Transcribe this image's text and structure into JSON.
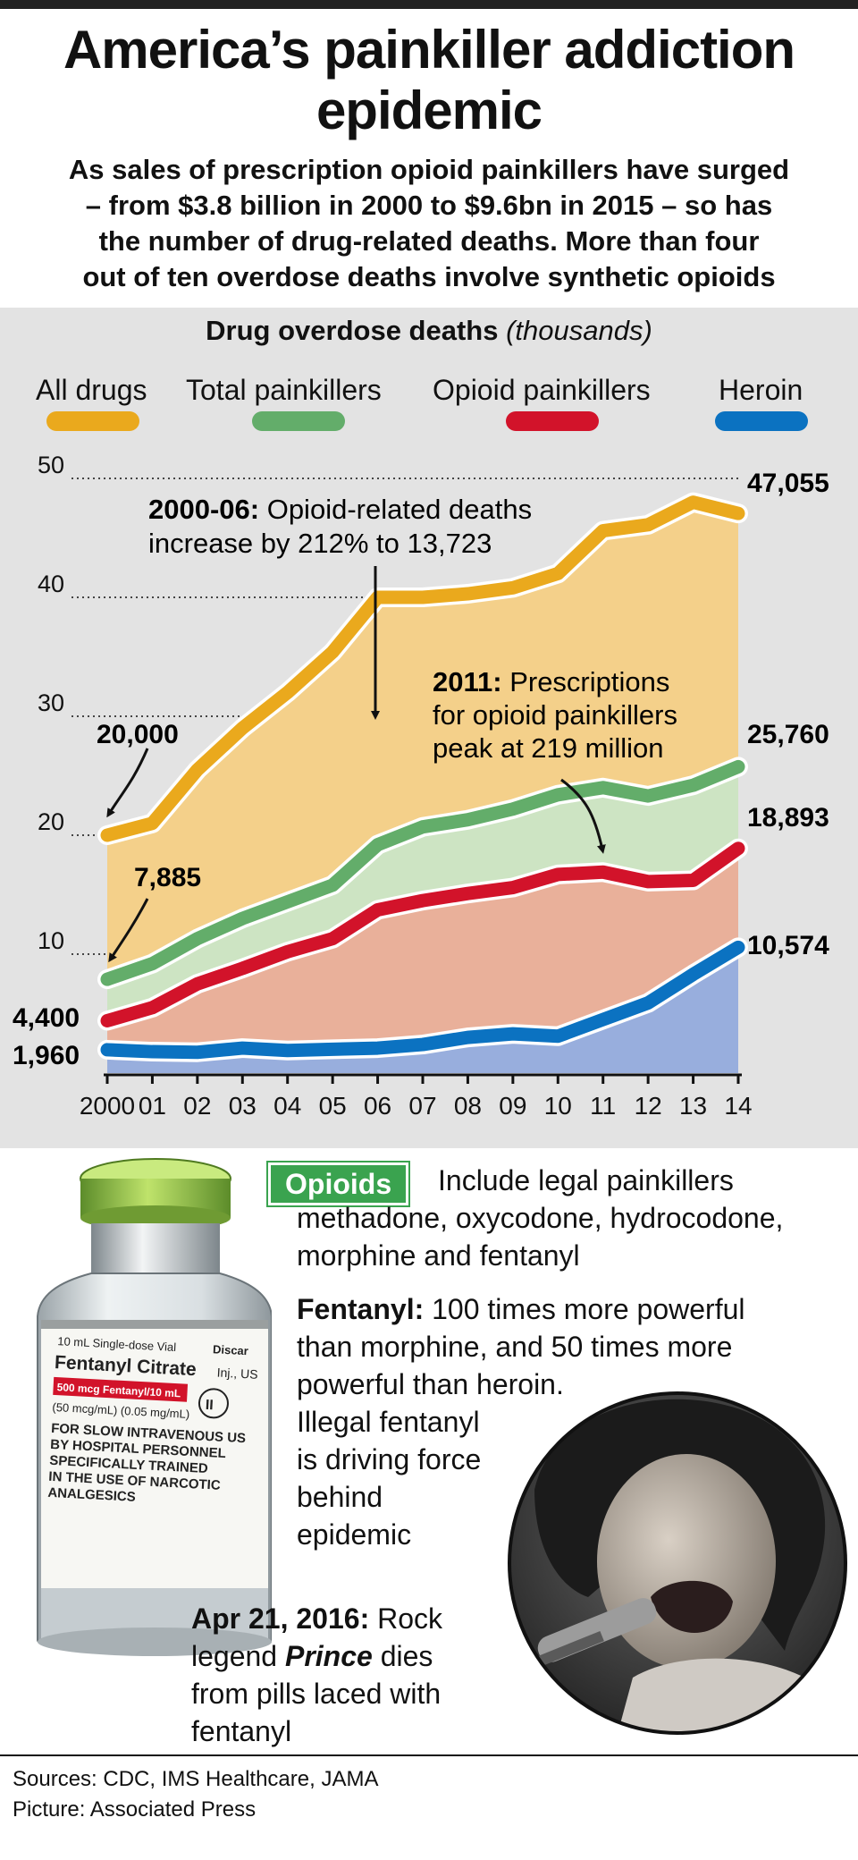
{
  "header": {
    "title_line1": "America’s painkiller addiction",
    "title_line2": "epidemic",
    "intro_lines": [
      "As sales of prescription opioid painkillers have surged",
      "– from $3.8 billion in 2000 to $9.6bn in 2015 – so has",
      "the number of drug-related deaths. More than four",
      "out of ten overdose deaths involve synthetic opioids"
    ]
  },
  "chart_data": {
    "type": "area",
    "title": "Drug overdose deaths",
    "title_unit": "(thousands)",
    "x_tick_labels": [
      "2000",
      "01",
      "02",
      "03",
      "04",
      "05",
      "06",
      "07",
      "08",
      "09",
      "10",
      "11",
      "12",
      "13",
      "14"
    ],
    "x": [
      2000,
      2001,
      2002,
      2003,
      2004,
      2005,
      2006,
      2007,
      2008,
      2009,
      2010,
      2011,
      2012,
      2013,
      2014
    ],
    "y_ticks": [
      10,
      20,
      30,
      40,
      50
    ],
    "ylim": [
      0,
      50
    ],
    "grid": "dotted horizontal",
    "legend_position": "top",
    "series": [
      {
        "name": "All drugs",
        "color": "#eaa91d",
        "fill": "#f4d08a",
        "values": [
          20.0,
          21.0,
          25.5,
          29.0,
          32.0,
          35.4,
          40.0,
          40.0,
          40.3,
          40.8,
          42.0,
          45.6,
          46.1,
          48.0,
          47.055
        ]
      },
      {
        "name": "Total painkillers",
        "color": "#63ad6a",
        "fill": "#cde4c3",
        "values": [
          7.885,
          9.2,
          11.3,
          13.0,
          14.4,
          15.8,
          19.2,
          20.7,
          21.3,
          22.2,
          23.4,
          24.0,
          23.3,
          24.2,
          25.76
        ]
      },
      {
        "name": "Opioid painkillers",
        "color": "#d2132a",
        "fill": "#e9b09a",
        "values": [
          4.4,
          5.5,
          7.5,
          8.8,
          10.2,
          11.3,
          13.723,
          14.5,
          15.1,
          15.6,
          16.7,
          16.9,
          16.1,
          16.2,
          18.893
        ]
      },
      {
        "name": "Heroin",
        "color": "#0b72c1",
        "fill": "#98aedd",
        "values": [
          1.96,
          1.8,
          1.75,
          2.1,
          1.9,
          2.0,
          2.1,
          2.4,
          3.0,
          3.3,
          3.1,
          4.5,
          5.9,
          8.3,
          10.574
        ]
      }
    ],
    "value_labels": {
      "all_start": "20,000",
      "all_end": "47,055",
      "total_start": "7,885",
      "total_end": "25,760",
      "opioid_start": "4,400",
      "opioid_end": "18,893",
      "heroin_start": "1,960",
      "heroin_end": "10,574"
    },
    "annotations": [
      {
        "bold": "2000-06:",
        "line1": " Opioid-related deaths",
        "line2": "increase by 212% to 13,723"
      },
      {
        "bold": "2011:",
        "line1": " Prescriptions",
        "line2": "for opioid painkillers",
        "line3": "peak at 219 million"
      }
    ]
  },
  "opioids": {
    "badge": "Opioids",
    "line1": "Include legal painkillers",
    "line2": "methadone, oxycodone, hydrocodone,",
    "line3": "morphine and fentanyl"
  },
  "fentanyl": {
    "bold": "Fentanyl:",
    "line1": " 100 times more powerful",
    "line2": "than morphine, and 50 times more",
    "line3": "powerful than heroin.",
    "line4": "Illegal fentanyl",
    "line5": "is driving force",
    "line6": "behind",
    "line7": "epidemic"
  },
  "vial": {
    "l1": "10 mL Single-dose Vial",
    "l1b": "Discar",
    "l2": "Fentanyl Citrate",
    "l2b": "Inj., US",
    "l3": "500 mcg Fentanyl/10 mL",
    "l4": "(50 mcg/mL) (0.05 mg/mL)",
    "l5": "FOR SLOW INTRAVENOUS US",
    "l6": "BY HOSPITAL PERSONNEL",
    "l7": "SPECIFICALLY TRAINED",
    "l8": "IN THE USE OF NARCOTIC",
    "l9": "ANALGESICS",
    "schedule": "II"
  },
  "prince": {
    "bold": "Apr 21, 2016:",
    "line1": " Rock",
    "line2a": "legend ",
    "name": "Prince",
    "line2b": " dies",
    "line3": "from pills laced with",
    "line4": "fentanyl"
  },
  "footer": {
    "sources": "Sources: CDC, IMS Healthcare, JAMA",
    "picture": "Picture: Associated Press"
  }
}
